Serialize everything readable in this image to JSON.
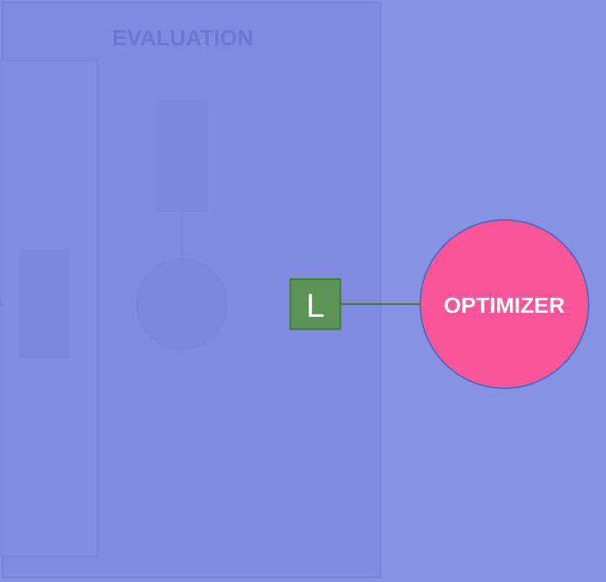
{
  "evaluation": {
    "title": "EVALUATION"
  },
  "loss_node": {
    "label": "L"
  },
  "optimizer": {
    "label": "OPTIMIZER"
  },
  "colors": {
    "background": "#8593e2",
    "evaluation_panel": "#7f8ae1",
    "panel_border": "#7580d8",
    "faded_shape": "#7984dd",
    "faded_text": "#6b77d0",
    "loss_fill": "#5a9556",
    "loss_border": "#3f7a24",
    "connector": "#3f7a24",
    "optimizer_fill": "#fa5599",
    "optimizer_border": "#4f6ac0",
    "label_text": "#ffffff"
  }
}
